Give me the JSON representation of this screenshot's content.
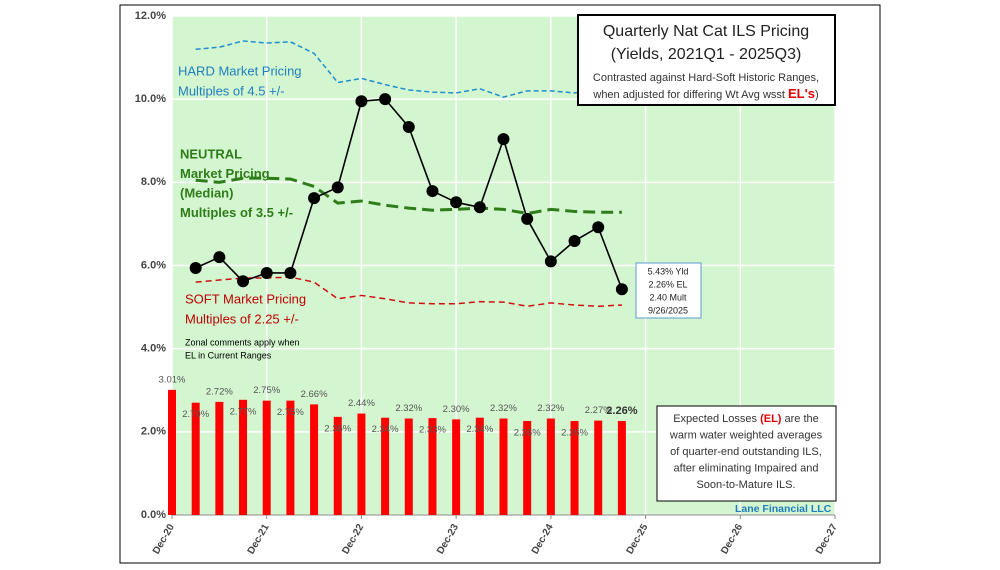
{
  "chart_data": {
    "type": "combo",
    "title_lines": [
      "Quarterly Nat Cat ILS Pricing",
      "(Yields, 2021Q1 - 2025Q3)"
    ],
    "subtitle_lines": [
      [
        "Contrasted against Hard-Soft Historic Ranges,"
      ],
      [
        "when adjusted for differing Wt Avg wsst ",
        "EL's",
        ")"
      ]
    ],
    "xlim": [
      2021,
      2028
    ],
    "xticks": [
      {
        "value": 2021,
        "label": "Dec-20"
      },
      {
        "value": 2022,
        "label": "Dec-21"
      },
      {
        "value": 2023,
        "label": "Dec-22"
      },
      {
        "value": 2024,
        "label": "Dec-23"
      },
      {
        "value": 2025,
        "label": "Dec-24"
      },
      {
        "value": 2026,
        "label": "Dec-25"
      },
      {
        "value": 2027,
        "label": "Dec-26"
      },
      {
        "value": 2028,
        "label": "Dec-27"
      }
    ],
    "ylim": [
      0,
      12
    ],
    "yticks": [
      {
        "value": 0,
        "label": "0.0%"
      },
      {
        "value": 2,
        "label": "2.0%"
      },
      {
        "value": 4,
        "label": "4.0%"
      },
      {
        "value": 6,
        "label": "6.0%"
      },
      {
        "value": 8,
        "label": "8.0%"
      },
      {
        "value": 10,
        "label": "10.0%"
      },
      {
        "value": 12,
        "label": "12.0%"
      }
    ],
    "grid": true,
    "x": [
      2021.25,
      2021.5,
      2021.75,
      2022,
      2022.25,
      2022.5,
      2022.75,
      2023,
      2023.25,
      2023.5,
      2023.75,
      2024,
      2024.25,
      2024.5,
      2024.75,
      2025,
      2025.25,
      2025.5,
      2025.75
    ],
    "series": [
      {
        "color": "#1f8fcf",
        "style": "dotted",
        "values": [
          11.2,
          11.25,
          11.4,
          11.35,
          11.38,
          11.1,
          10.4,
          10.5,
          10.35,
          10.22,
          10.17,
          10.15,
          10.25,
          10.05,
          10.2,
          10.2,
          10.15,
          10.2,
          10.2
        ]
      },
      {
        "color": "#2e7d1a",
        "style": "dashed",
        "values": [
          8.05,
          8.0,
          8.1,
          8.1,
          8.08,
          7.9,
          7.5,
          7.55,
          7.45,
          7.38,
          7.33,
          7.35,
          7.38,
          7.35,
          7.25,
          7.35,
          7.3,
          7.28,
          7.28
        ]
      },
      {
        "color": "#d01010",
        "style": "dashed-thin",
        "values": [
          5.6,
          5.65,
          5.7,
          5.7,
          5.72,
          5.6,
          5.2,
          5.28,
          5.2,
          5.1,
          5.08,
          5.08,
          5.13,
          5.12,
          5.02,
          5.1,
          5.05,
          5.02,
          5.05
        ]
      },
      {
        "color": "#000000",
        "style": "solid-markers",
        "values": [
          5.94,
          6.2,
          5.62,
          5.82,
          5.82,
          7.62,
          7.88,
          9.95,
          10.0,
          9.33,
          7.79,
          7.52,
          7.4,
          9.04,
          7.12,
          6.1,
          6.59,
          6.92,
          5.43
        ]
      }
    ],
    "bars": {
      "color": "#ff0000",
      "x": [
        2021,
        2021.25,
        2021.5,
        2021.75,
        2022,
        2022.25,
        2022.5,
        2022.75,
        2023,
        2023.25,
        2023.5,
        2023.75,
        2024,
        2024.25,
        2024.5,
        2024.75,
        2025,
        2025.25,
        2025.5,
        2025.75
      ],
      "values": [
        3.01,
        2.7,
        2.72,
        2.77,
        2.75,
        2.75,
        2.66,
        2.36,
        2.44,
        2.34,
        2.32,
        2.33,
        2.3,
        2.34,
        2.32,
        2.26,
        2.32,
        2.26,
        2.27,
        2.26
      ],
      "value_labels": [
        "3.01%",
        "2.70%",
        "2.72%",
        "2.77%",
        "2.75%",
        "2.75%",
        "2.66%",
        "2.36%",
        "2.44%",
        "2.34%",
        "2.32%",
        "2.33%",
        "2.30%",
        "2.34%",
        "2.32%",
        "2.26%",
        "2.32%",
        "2.26%",
        "2.27%",
        "2.26%"
      ]
    },
    "hard_label": [
      "HARD Market Pricing",
      "Multiples of 4.5 +/-"
    ],
    "neutral_label": [
      "NEUTRAL",
      "Market Pricing",
      "(Median)",
      "Multiples of 3.5 +/-"
    ],
    "soft_label": [
      "SOFT Market Pricing",
      "Multiples of 2.25 +/-"
    ],
    "zonal_note": [
      "Zonal comments apply when",
      "EL in Current Ranges"
    ],
    "callout": [
      "5.43% Yld",
      "2.26% EL",
      "2.40 Mult",
      "9/26/2025"
    ],
    "el_note": [
      [
        "Expected Losses ",
        "(EL)",
        " are the"
      ],
      [
        "warm water weighted averages"
      ],
      [
        "of quarter-end outstanding ILS,"
      ],
      [
        "after eliminating Impaired and"
      ],
      [
        "Soon-to-Mature ILS."
      ]
    ],
    "source": "Lane Financial LLC"
  }
}
